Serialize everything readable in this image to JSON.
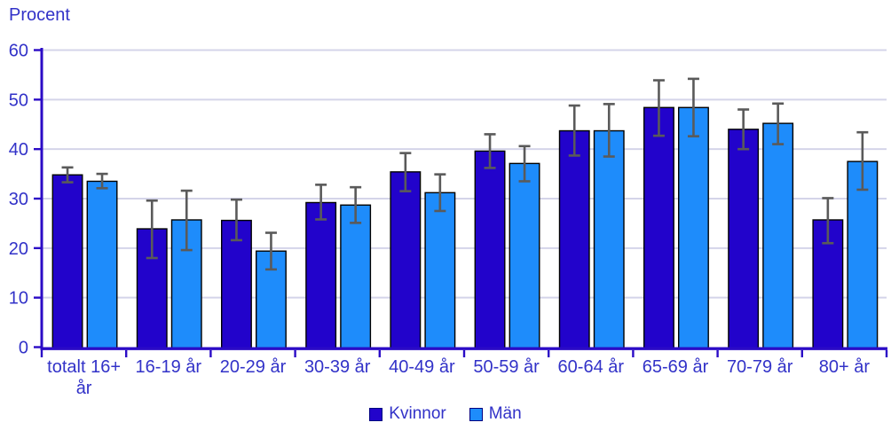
{
  "y_axis_title": "Procent",
  "colors": {
    "axis": "#2B0BC6",
    "text": "#3232C8",
    "grid": "#D4D4E9",
    "error": "#5A5A5A",
    "bar_border": "#000000",
    "legend_swatch_border": "#000080",
    "kvinnor": "#2203CB",
    "man": "#1E8CFB"
  },
  "chart_data": {
    "type": "bar",
    "title": "",
    "ylabel": "Procent",
    "xlabel": "",
    "ylim": [
      0,
      60
    ],
    "ytick_step": 10,
    "grid": true,
    "legend_position": "bottom",
    "error_bars": true,
    "categories": [
      "totalt 16+\når",
      "16-19 år",
      "20-29 år",
      "30-39 år",
      "40-49 år",
      "50-59 år",
      "60-64 år",
      "65-69 år",
      "70-79 år",
      "80+ år"
    ],
    "series": [
      {
        "name": "Kvinnor",
        "color": "#2203CB",
        "values": [
          34.8,
          23.9,
          25.6,
          29.2,
          35.4,
          39.6,
          43.7,
          48.4,
          44.0,
          25.7
        ],
        "err_low": [
          33.3,
          18.0,
          21.6,
          25.8,
          31.5,
          36.2,
          38.7,
          42.7,
          40.0,
          21.0
        ],
        "err_high": [
          36.3,
          29.6,
          29.8,
          32.8,
          39.2,
          43.0,
          48.8,
          53.9,
          48.0,
          30.1
        ]
      },
      {
        "name": "Män",
        "color": "#1E8CFB",
        "values": [
          33.5,
          25.7,
          19.4,
          28.7,
          31.2,
          37.1,
          43.7,
          48.4,
          45.2,
          37.5
        ],
        "err_low": [
          32.1,
          19.6,
          15.7,
          25.1,
          27.5,
          33.5,
          38.5,
          42.6,
          41.0,
          31.8
        ],
        "err_high": [
          35.0,
          31.6,
          23.1,
          32.3,
          34.9,
          40.6,
          49.1,
          54.2,
          49.2,
          43.4
        ]
      }
    ]
  }
}
